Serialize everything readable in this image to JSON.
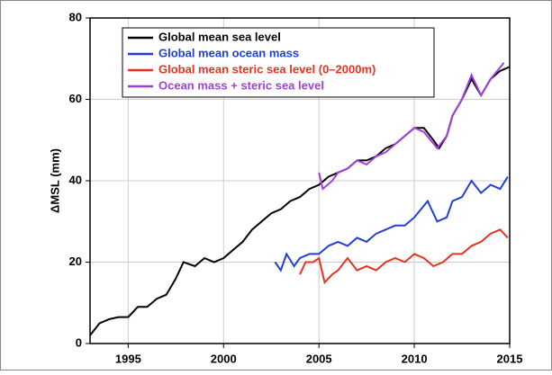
{
  "chart_data": {
    "type": "line",
    "y_label": "ΔMSL (mm)",
    "xlim": [
      1993,
      2015
    ],
    "xticks": [
      1995,
      2000,
      2005,
      2010,
      2015
    ],
    "ylim": [
      0,
      80
    ],
    "yticks": [
      0,
      20,
      40,
      60,
      80
    ],
    "grid": true,
    "legend": "upper-left",
    "series": [
      {
        "name": "Global mean sea level",
        "color": "#000000",
        "x": [
          1993,
          1993.5,
          1994,
          1994.5,
          1995,
          1995.5,
          1996,
          1996.5,
          1997,
          1997.5,
          1997.9,
          1998.5,
          1999,
          1999.5,
          2000,
          2000.5,
          2001,
          2001.5,
          2002,
          2002.5,
          2003,
          2003.5,
          2004,
          2004.5,
          2005,
          2005.5,
          2006,
          2006.5,
          2007,
          2007.5,
          2008,
          2008.5,
          2009,
          2009.5,
          2010,
          2010.5,
          2011,
          2011.3,
          2011.7,
          2012,
          2012.5,
          2013,
          2013.5,
          2014,
          2014.5,
          2015
        ],
        "values": [
          2,
          5,
          6,
          6.5,
          6.5,
          9,
          9,
          11,
          12,
          16,
          20,
          19,
          21,
          20,
          21,
          23,
          25,
          28,
          30,
          32,
          33,
          35,
          36,
          38,
          39,
          41,
          42,
          43,
          45,
          45,
          46,
          48,
          49,
          51,
          53,
          53,
          50,
          48,
          51,
          56,
          60,
          65,
          61,
          65,
          67,
          68
        ]
      },
      {
        "name": "Global mean ocean mass",
        "color": "#1f3fd6",
        "x": [
          2002.7,
          2003,
          2003.3,
          2003.7,
          2004,
          2004.5,
          2005,
          2005.5,
          2006,
          2006.5,
          2007,
          2007.5,
          2008,
          2008.5,
          2009,
          2009.5,
          2010,
          2010.7,
          2011.2,
          2011.7,
          2012,
          2012.5,
          2013,
          2013.5,
          2014,
          2014.5,
          2014.9
        ],
        "values": [
          20,
          18,
          22,
          19,
          21,
          22,
          22,
          24,
          25,
          24,
          26,
          25,
          27,
          28,
          29,
          29,
          31,
          35,
          30,
          31,
          35,
          36,
          40,
          37,
          39,
          38,
          41
        ]
      },
      {
        "name": "Global mean steric sea level (0–2000m)",
        "color": "#e8321e",
        "x": [
          2004,
          2004.3,
          2004.7,
          2005,
          2005.3,
          2005.7,
          2006,
          2006.5,
          2007,
          2007.5,
          2008,
          2008.5,
          2009,
          2009.5,
          2010,
          2010.5,
          2011,
          2011.5,
          2012,
          2012.5,
          2013,
          2013.5,
          2014,
          2014.5,
          2014.9
        ],
        "values": [
          17,
          20,
          20,
          21,
          15,
          17,
          18,
          21,
          18,
          19,
          18,
          20,
          21,
          20,
          22,
          21,
          19,
          20,
          22,
          22,
          24,
          25,
          27,
          28,
          26
        ]
      },
      {
        "name": "Ocean mass + steric sea level",
        "color": "#a040e0",
        "x": [
          2005,
          2005.2,
          2005.7,
          2006,
          2006.5,
          2007,
          2007.5,
          2008,
          2008.5,
          2009,
          2009.5,
          2010,
          2010.5,
          2011.2,
          2011.7,
          2012,
          2012.5,
          2013,
          2013.5,
          2014,
          2014.7
        ],
        "values": [
          42,
          38,
          40,
          42,
          43,
          45,
          44,
          46,
          47,
          49,
          51,
          53,
          52,
          48,
          51,
          56,
          60,
          66,
          61,
          65,
          69
        ]
      }
    ]
  }
}
